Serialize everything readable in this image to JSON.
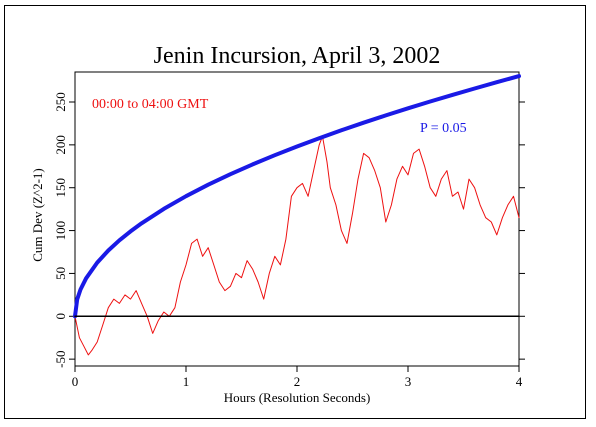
{
  "chart_data": {
    "type": "line",
    "title": "Jenin Incursion, April 3, 2002",
    "xlabel": "Hours (Resolution Seconds)",
    "ylabel": "Cum Dev (Z^2-1)",
    "annotation": "00:00 to 04:00 GMT",
    "xlim": [
      0,
      4
    ],
    "ylim": [
      -58,
      285
    ],
    "x_ticks": [
      0,
      1,
      2,
      3,
      4
    ],
    "x_tick_labels": [
      "0",
      "1",
      "2",
      "3",
      "4"
    ],
    "y_ticks": [
      -50,
      0,
      50,
      100,
      150,
      200,
      250
    ],
    "y_tick_labels": [
      "-50",
      "0",
      "50",
      "100",
      "150",
      "200",
      "250"
    ],
    "grid": false,
    "series": [
      {
        "name": "",
        "color": "#ee1111",
        "x": [
          0,
          0.04,
          0.08,
          0.12,
          0.15,
          0.2,
          0.25,
          0.3,
          0.35,
          0.4,
          0.45,
          0.5,
          0.55,
          0.6,
          0.65,
          0.7,
          0.75,
          0.8,
          0.85,
          0.9,
          0.95,
          1.0,
          1.05,
          1.1,
          1.15,
          1.2,
          1.25,
          1.3,
          1.35,
          1.4,
          1.45,
          1.5,
          1.55,
          1.6,
          1.65,
          1.7,
          1.75,
          1.8,
          1.85,
          1.9,
          1.95,
          2.0,
          2.05,
          2.1,
          2.15,
          2.2,
          2.23,
          2.27,
          2.3,
          2.35,
          2.4,
          2.45,
          2.5,
          2.55,
          2.6,
          2.65,
          2.7,
          2.75,
          2.8,
          2.85,
          2.9,
          2.95,
          3.0,
          3.05,
          3.1,
          3.15,
          3.2,
          3.25,
          3.3,
          3.35,
          3.4,
          3.45,
          3.5,
          3.55,
          3.6,
          3.65,
          3.7,
          3.75,
          3.8,
          3.85,
          3.9,
          3.95,
          4.0
        ],
        "y": [
          0,
          -25,
          -35,
          -45,
          -40,
          -30,
          -10,
          10,
          20,
          15,
          25,
          20,
          30,
          15,
          0,
          -20,
          -5,
          5,
          0,
          10,
          40,
          60,
          85,
          90,
          70,
          80,
          60,
          40,
          30,
          35,
          50,
          45,
          65,
          55,
          40,
          20,
          50,
          70,
          60,
          90,
          140,
          150,
          155,
          140,
          170,
          200,
          210,
          180,
          150,
          130,
          100,
          85,
          120,
          160,
          190,
          185,
          170,
          150,
          110,
          130,
          160,
          175,
          165,
          190,
          195,
          175,
          150,
          140,
          160,
          170,
          140,
          145,
          125,
          160,
          150,
          130,
          115,
          110,
          95,
          115,
          130,
          140,
          115
        ]
      },
      {
        "name": "P = 0.05",
        "color": "#1a1ae6",
        "x": [
          0,
          0.02,
          0.05,
          0.1,
          0.2,
          0.3,
          0.4,
          0.5,
          0.6,
          0.8,
          1.0,
          1.2,
          1.4,
          1.6,
          1.8,
          2.0,
          2.2,
          2.4,
          2.6,
          2.8,
          3.0,
          3.2,
          3.4,
          3.6,
          3.8,
          4.0
        ],
        "y": [
          0,
          19.8,
          31.3,
          44.3,
          62.6,
          76.7,
          88.6,
          99.0,
          108.5,
          125.3,
          140.1,
          153.5,
          165.8,
          177.2,
          187.9,
          198.1,
          207.8,
          217.0,
          225.9,
          234.4,
          242.6,
          250.6,
          258.3,
          265.8,
          273.1,
          280.2
        ]
      },
      {
        "name": "",
        "color": "#000000",
        "x": [
          0,
          4
        ],
        "y": [
          0,
          0
        ]
      }
    ]
  }
}
